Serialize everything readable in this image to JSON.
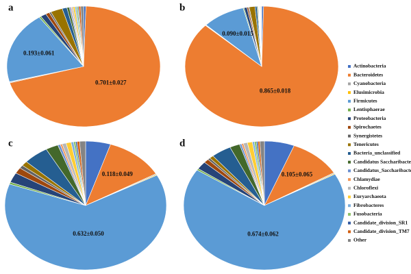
{
  "legend": {
    "categories": [
      "Actinobacteria",
      "Bacteroidetes",
      "Cyanobacteria",
      "Elusimicrobia",
      "Firmicutes",
      "Lentisphaerae",
      "Proteobacteria",
      "Spirochaetes",
      "Synergistetes",
      "Tenericutes",
      "Bacteria_unclassified",
      "Candidatus Saccharibacteria",
      "Candidatus_Saccharibacteria",
      "Chlamydiae",
      "Chloroflexi",
      "Euryarchaeota",
      "Fibrobacteres",
      "Fusobacteria",
      "Candidate_division_SR1",
      "Candidate_division_TM7",
      "Other"
    ],
    "colors": [
      "#4472c4",
      "#ed7d31",
      "#a5a5a5",
      "#ffc000",
      "#5b9bd5",
      "#70ad47",
      "#264478",
      "#9e480e",
      "#636363",
      "#997300",
      "#255e91",
      "#43682b",
      "#698ed0",
      "#f1975a",
      "#b7b7b7",
      "#ffcd33",
      "#7cafdd",
      "#8cc168",
      "#335aa1",
      "#d26012",
      "#848484"
    ]
  },
  "chart_data": [
    {
      "type": "pie",
      "title": "a",
      "values": [
        0.005,
        0.701,
        0.002,
        0.001,
        0.193,
        0.004,
        0.012,
        0.008,
        0.004,
        0.025,
        0.01,
        0.005,
        0.003,
        0.002,
        0.003,
        0.004,
        0.003,
        0.003,
        0.002,
        0.004,
        0.006
      ],
      "value_labels": [
        null,
        "0.701±0.027",
        null,
        null,
        "0.193±0.061",
        null,
        null,
        null,
        null,
        null,
        null,
        null,
        null,
        null,
        null,
        null,
        null,
        null,
        null,
        null,
        null
      ]
    },
    {
      "type": "pie",
      "title": "b",
      "values": [
        0.004,
        0.865,
        0.001,
        0.001,
        0.09,
        0.002,
        0.006,
        0.003,
        0.002,
        0.012,
        0.004,
        0.002,
        0.001,
        0.001,
        0.001,
        0.001,
        0.001,
        0.001,
        0.001,
        0.001,
        0
      ],
      "value_labels": [
        null,
        "0.865±0.018",
        null,
        null,
        "0.090±0.015",
        null,
        null,
        null,
        null,
        null,
        null,
        null,
        null,
        null,
        null,
        null,
        null,
        null,
        null,
        null,
        null
      ]
    },
    {
      "type": "pie",
      "title": "c",
      "values": [
        0.05,
        0.118,
        0.002,
        0.002,
        0.632,
        0.005,
        0.025,
        0.015,
        0.008,
        0.012,
        0.05,
        0.025,
        0.005,
        0.004,
        0.008,
        0.01,
        0.005,
        0.004,
        0.003,
        0.005,
        0.012
      ],
      "value_labels": [
        null,
        "0.118±0.049",
        null,
        null,
        "0.632±0.050",
        null,
        null,
        null,
        null,
        null,
        null,
        null,
        null,
        null,
        null,
        null,
        null,
        null,
        null,
        null,
        null
      ]
    },
    {
      "type": "pie",
      "title": "d",
      "values": [
        0.06,
        0.105,
        0.002,
        0.002,
        0.674,
        0.004,
        0.02,
        0.01,
        0.005,
        0.008,
        0.04,
        0.02,
        0.004,
        0.004,
        0.008,
        0.01,
        0.004,
        0.004,
        0.003,
        0.004,
        0.009
      ],
      "value_labels": [
        null,
        "0.105±0.065",
        null,
        null,
        "0.674±0.062",
        null,
        null,
        null,
        null,
        null,
        null,
        null,
        null,
        null,
        null,
        null,
        null,
        null,
        null,
        null,
        null
      ]
    }
  ]
}
